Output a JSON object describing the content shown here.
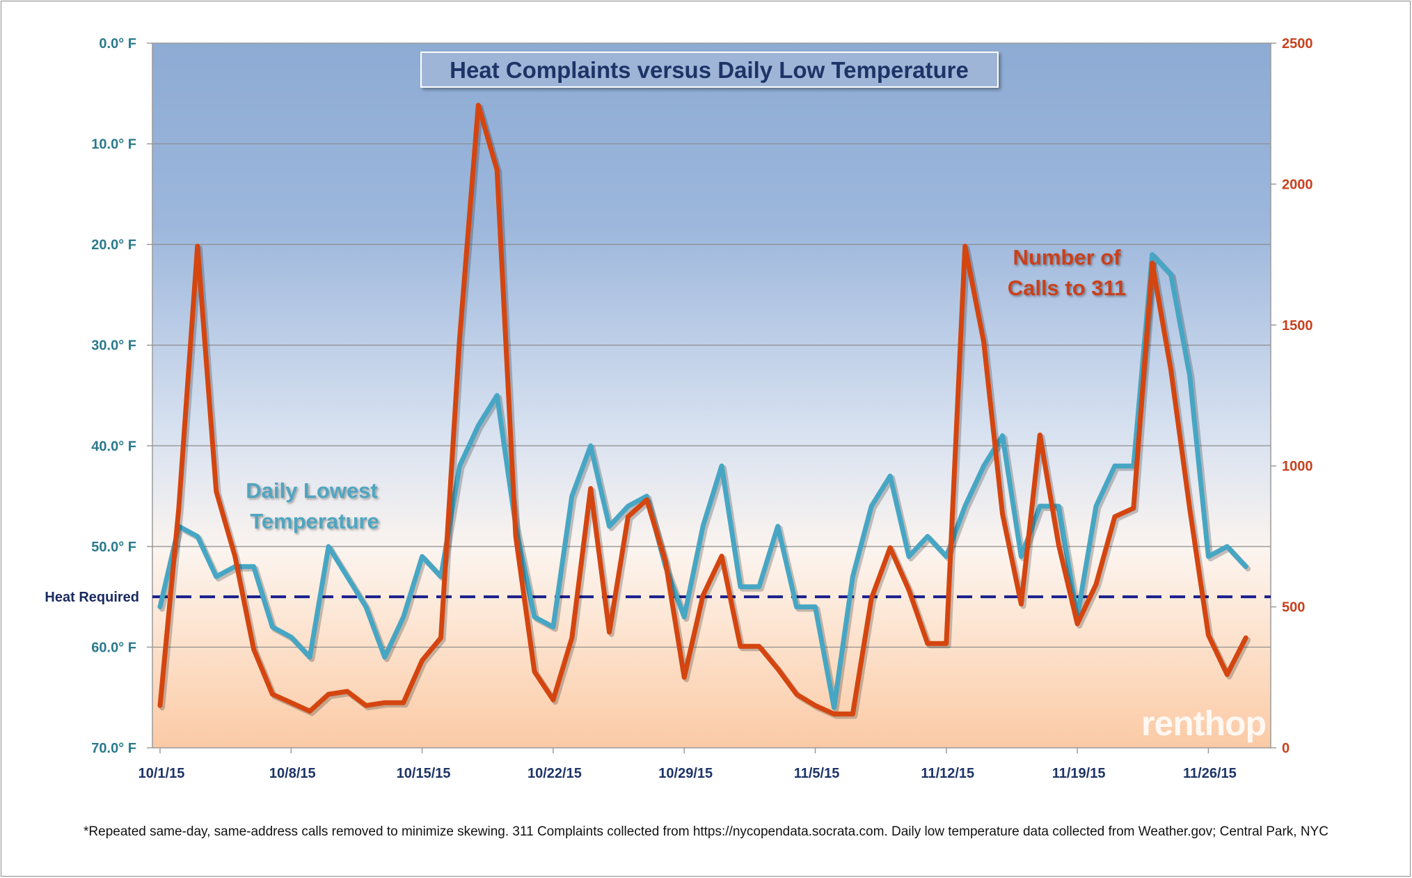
{
  "chart_data": {
    "type": "line",
    "title": "Heat Complaints versus Daily Low Temperature",
    "footnote": "*Repeated same-day, same-address calls removed to minimize skewing. 311 Complaints collected from https://nycopendata.socrata.com. Daily low temperature data collected from Weather.gov; Central Park, NYC",
    "logo": "renthop",
    "x_tick_labels": [
      "10/1/15",
      "10/8/15",
      "10/15/15",
      "10/22/15",
      "10/29/15",
      "11/5/15",
      "11/12/15",
      "11/19/15",
      "11/26/15"
    ],
    "y_left": {
      "min": 0,
      "max": 70,
      "inverted": true,
      "ticks": [
        0,
        10,
        20,
        30,
        40,
        50,
        60,
        70
      ],
      "tick_labels": [
        "0.0° F",
        "10.0° F",
        "20.0° F",
        "30.0° F",
        "40.0° F",
        "50.0° F",
        "60.0° F",
        "70.0° F"
      ],
      "tick_color": "#2a7a8c"
    },
    "y_right": {
      "min": 0,
      "max": 2500,
      "ticks": [
        0,
        500,
        1000,
        1500,
        2000,
        2500
      ],
      "tick_labels": [
        "0",
        "500",
        "1000",
        "1500",
        "2000",
        "2500"
      ],
      "tick_color": "#c8411e"
    },
    "heat_required": {
      "label": "Heat Required",
      "value": 55,
      "color": "#1a1f8c"
    },
    "series": [
      {
        "name": "Daily Lowest Temperature",
        "label_lines": [
          "Daily Lowest",
          "Temperature"
        ],
        "axis": "left",
        "color": "#46a6c4",
        "label_color": "#4fa5c0",
        "values": [
          56,
          48,
          49,
          53,
          52,
          52,
          58,
          59,
          61,
          50,
          53,
          56,
          61,
          57,
          51,
          53,
          42,
          38,
          35,
          48,
          57,
          58,
          45,
          40,
          48,
          46,
          45,
          52,
          57,
          48,
          42,
          54,
          54,
          48,
          56,
          56,
          66,
          53,
          46,
          43,
          51,
          49,
          51,
          46,
          42,
          39,
          51,
          46,
          46,
          57,
          46,
          42,
          42,
          21,
          23,
          33,
          51,
          50,
          52
        ]
      },
      {
        "name": "Number of Calls to 311",
        "label_lines": [
          "Number of",
          "Calls to 311"
        ],
        "axis": "right",
        "color": "#d4450f",
        "label_color": "#c8411e",
        "values": [
          150,
          850,
          1780,
          910,
          680,
          350,
          190,
          160,
          130,
          190,
          200,
          150,
          160,
          160,
          310,
          390,
          1450,
          2280,
          2050,
          750,
          270,
          170,
          390,
          920,
          410,
          820,
          880,
          660,
          250,
          540,
          680,
          360,
          360,
          280,
          190,
          150,
          120,
          120,
          530,
          710,
          560,
          370,
          370,
          1780,
          1440,
          830,
          510,
          1110,
          720,
          440,
          580,
          820,
          850,
          1720,
          1340,
          850,
          400,
          260,
          390
        ]
      }
    ]
  }
}
